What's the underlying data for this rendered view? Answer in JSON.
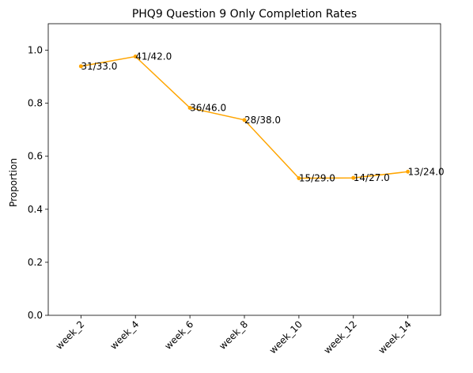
{
  "chart_data": {
    "type": "line",
    "title": "PHQ9 Question 9 Only Completion Rates",
    "xlabel": "",
    "ylabel": "Proportion",
    "categories": [
      "week_2",
      "week_4",
      "week_6",
      "week_8",
      "week_10",
      "week_12",
      "week_14"
    ],
    "series": [
      {
        "values": [
          0.9394,
          0.9762,
          0.7826,
          0.7368,
          0.5172,
          0.5185,
          0.5417
        ],
        "labels": [
          "31/33.0",
          "41/42.0",
          "36/46.0",
          "28/38.0",
          "15/29.0",
          "14/27.0",
          "13/24.0"
        ],
        "color": "#ffa500"
      }
    ],
    "ylim": [
      0,
      1.1
    ],
    "yticks": [
      0.0,
      0.2,
      0.4,
      0.6,
      0.8,
      1.0
    ],
    "ytick_labels": [
      "0.0",
      "0.2",
      "0.4",
      "0.6",
      "0.8",
      "1.0"
    ],
    "grid": false,
    "legend": "none"
  }
}
